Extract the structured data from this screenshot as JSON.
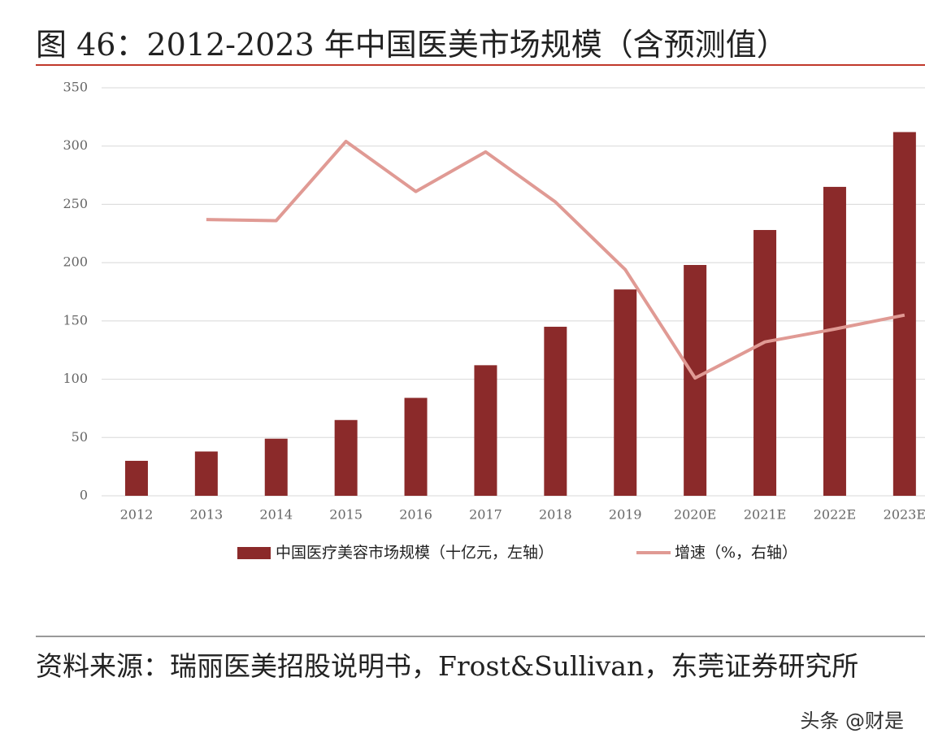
{
  "chart_data": {
    "type": "combo",
    "title": "图 46：2012-2023 年中国医美市场规模（含预测值）",
    "categories": [
      "2012",
      "2013",
      "2014",
      "2015",
      "2016",
      "2017",
      "2018",
      "2019",
      "2020E",
      "2021E",
      "2022E",
      "2023E"
    ],
    "series": [
      {
        "name": "中国医疗美容市场规模（十亿元，左轴）",
        "type": "bar",
        "color": "#8b2a2a",
        "values": [
          30,
          38,
          49,
          65,
          84,
          112,
          145,
          177,
          198,
          228,
          265,
          312
        ]
      },
      {
        "name": "增速（%，右轴）",
        "type": "line",
        "axis": "y2",
        "color": "#e09a94",
        "values": [
          null,
          23.7,
          23.6,
          30.4,
          26.1,
          29.5,
          25.2,
          19.4,
          10.1,
          13.2,
          14.3,
          15.5
        ]
      }
    ],
    "ylim": [
      0,
      350
    ],
    "yticks": [
      0,
      50,
      100,
      150,
      200,
      250,
      300,
      350
    ],
    "y2lim": [
      0,
      35
    ],
    "grid": true,
    "source": "资料来源：瑞丽医美招股说明书，Frost&Sullivan，东莞证券研究所",
    "watermark": "头条 @财是"
  }
}
